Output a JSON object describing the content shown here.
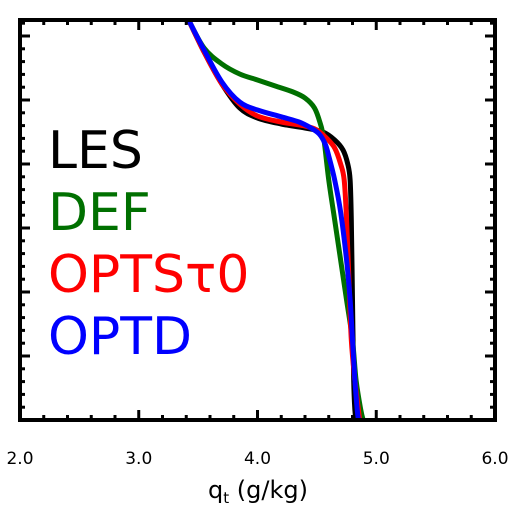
{
  "chart_data": {
    "type": "line",
    "title": "",
    "xlabel": "q",
    "xlabel_sub": "t",
    "xlabel_units": " (g/kg)",
    "ylabel": "",
    "xlim": [
      2.0,
      6.0
    ],
    "ylim": [
      0,
      1
    ],
    "x_ticks": [
      "2.0",
      "3.0",
      "4.0",
      "5.0",
      "6.0"
    ],
    "x_tick_values": [
      2.0,
      3.0,
      4.0,
      5.0,
      6.0
    ],
    "y_tick_labels_shown": false,
    "legend": {
      "placement": "left",
      "style": "colored-text"
    },
    "series": [
      {
        "name": "LES",
        "color": "#000000",
        "points": [
          [
            3.42,
            1.0
          ],
          [
            3.55,
            0.92
          ],
          [
            3.7,
            0.84
          ],
          [
            3.85,
            0.78
          ],
          [
            4.0,
            0.755
          ],
          [
            4.2,
            0.74
          ],
          [
            4.4,
            0.73
          ],
          [
            4.55,
            0.72
          ],
          [
            4.65,
            0.7
          ],
          [
            4.72,
            0.675
          ],
          [
            4.76,
            0.64
          ],
          [
            4.78,
            0.6
          ],
          [
            4.79,
            0.5
          ],
          [
            4.8,
            0.3
          ],
          [
            4.81,
            0.1
          ],
          [
            4.82,
            0.025
          ],
          [
            4.83,
            0.0
          ]
        ]
      },
      {
        "name": "DEF",
        "color": "#007000",
        "points": [
          [
            3.42,
            1.0
          ],
          [
            3.55,
            0.93
          ],
          [
            3.7,
            0.89
          ],
          [
            3.85,
            0.865
          ],
          [
            4.0,
            0.85
          ],
          [
            4.15,
            0.835
          ],
          [
            4.3,
            0.82
          ],
          [
            4.4,
            0.805
          ],
          [
            4.48,
            0.78
          ],
          [
            4.53,
            0.74
          ],
          [
            4.56,
            0.7
          ],
          [
            4.6,
            0.6
          ],
          [
            4.65,
            0.5
          ],
          [
            4.7,
            0.4
          ],
          [
            4.75,
            0.3
          ],
          [
            4.8,
            0.2
          ],
          [
            4.83,
            0.1
          ],
          [
            4.87,
            0.025
          ],
          [
            4.89,
            0.0
          ]
        ]
      },
      {
        "name": "OPTSτ0",
        "color": "#ff0000",
        "points": [
          [
            3.42,
            1.0
          ],
          [
            3.55,
            0.92
          ],
          [
            3.7,
            0.84
          ],
          [
            3.85,
            0.79
          ],
          [
            4.0,
            0.76
          ],
          [
            4.2,
            0.745
          ],
          [
            4.4,
            0.735
          ],
          [
            4.5,
            0.725
          ],
          [
            4.58,
            0.705
          ],
          [
            4.65,
            0.68
          ],
          [
            4.7,
            0.64
          ],
          [
            4.73,
            0.6
          ],
          [
            4.75,
            0.5
          ],
          [
            4.77,
            0.35
          ],
          [
            4.79,
            0.2
          ],
          [
            4.82,
            0.1
          ],
          [
            4.85,
            0.025
          ],
          [
            4.86,
            0.0
          ]
        ]
      },
      {
        "name": "OPTD",
        "color": "#0000ff",
        "points": [
          [
            3.42,
            1.0
          ],
          [
            3.55,
            0.925
          ],
          [
            3.7,
            0.845
          ],
          [
            3.85,
            0.795
          ],
          [
            4.0,
            0.775
          ],
          [
            4.2,
            0.758
          ],
          [
            4.35,
            0.745
          ],
          [
            4.45,
            0.73
          ],
          [
            4.52,
            0.715
          ],
          [
            4.57,
            0.69
          ],
          [
            4.6,
            0.66
          ],
          [
            4.65,
            0.6
          ],
          [
            4.7,
            0.52
          ],
          [
            4.75,
            0.4
          ],
          [
            4.78,
            0.3
          ],
          [
            4.8,
            0.2
          ],
          [
            4.82,
            0.1
          ],
          [
            4.84,
            0.025
          ],
          [
            4.85,
            0.0
          ]
        ]
      }
    ]
  }
}
